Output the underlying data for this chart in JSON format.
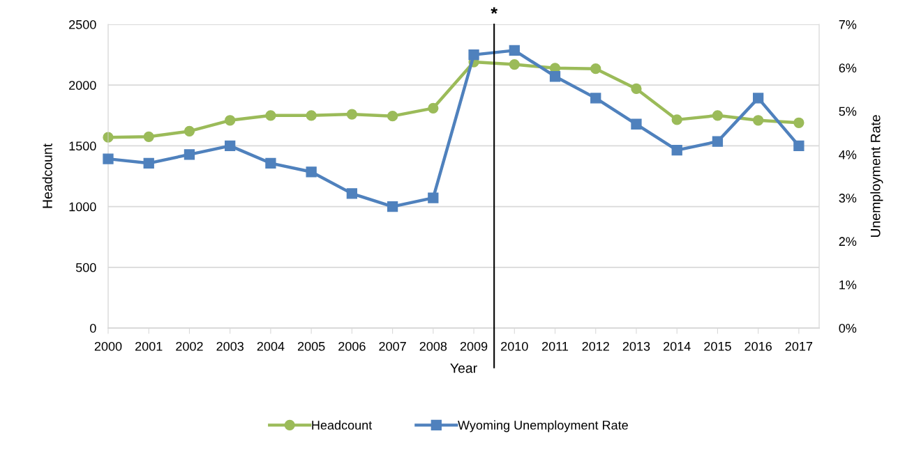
{
  "chart_data": {
    "type": "line",
    "xlabel": "Year",
    "ylabel": "Headcount",
    "y2label": "Unemployment Rate",
    "x": [
      2000,
      2001,
      2002,
      2003,
      2004,
      2005,
      2006,
      2007,
      2008,
      2009,
      2010,
      2011,
      2012,
      2013,
      2014,
      2015,
      2016,
      2017
    ],
    "xlim": [
      2000,
      2017.5
    ],
    "xticks": [
      2000,
      2001,
      2002,
      2003,
      2004,
      2005,
      2006,
      2007,
      2008,
      2009,
      2010,
      2011,
      2012,
      2013,
      2014,
      2015,
      2016,
      2017
    ],
    "ylim": [
      0,
      2500
    ],
    "yticks": [
      0,
      500,
      1000,
      1500,
      2000,
      2500
    ],
    "y2lim": [
      0,
      7
    ],
    "y2ticks": [
      {
        "value": 0,
        "label": "0%"
      },
      {
        "value": 1,
        "label": "1%"
      },
      {
        "value": 2,
        "label": "2%"
      },
      {
        "value": 3,
        "label": "3%"
      },
      {
        "value": 4,
        "label": "4%"
      },
      {
        "value": 5,
        "label": "5%"
      },
      {
        "value": 6,
        "label": "6%"
      },
      {
        "value": 7,
        "label": "7%"
      }
    ],
    "series": [
      {
        "name": "Headcount",
        "color": "#9bbb59",
        "marker": "circle",
        "values": [
          1570,
          1575,
          1620,
          1710,
          1750,
          1750,
          1760,
          1745,
          1810,
          2190,
          2170,
          2140,
          2135,
          1970,
          1715,
          1750,
          1710,
          1690
        ]
      },
      {
        "name": "Wyoming Unemployment Rate",
        "color": "#4f81bd",
        "marker": "square",
        "axis": "y2",
        "values": [
          3.9,
          3.8,
          4.0,
          4.2,
          3.8,
          3.6,
          3.1,
          2.8,
          3.0,
          6.3,
          6.4,
          5.8,
          5.3,
          4.7,
          4.1,
          4.3,
          5.3,
          4.2
        ]
      }
    ],
    "ref_lines": [
      {
        "axis": "x",
        "value": 2009.5,
        "label": "*",
        "color": "#000000",
        "line_style": "solid"
      }
    ],
    "grid": "y",
    "legend": "bottom",
    "line_style": "solid"
  }
}
